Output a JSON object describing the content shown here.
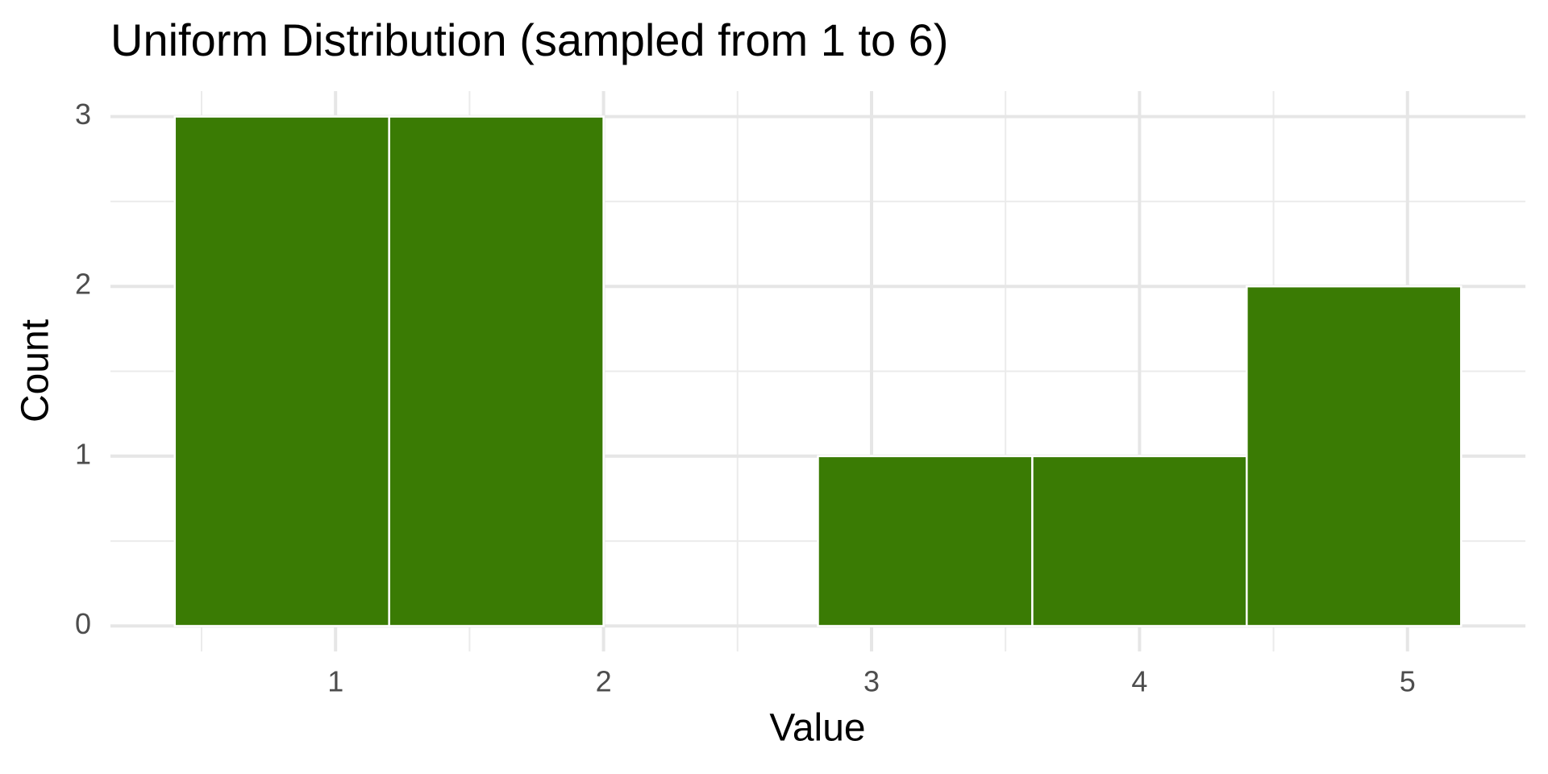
{
  "chart_data": {
    "type": "histogram",
    "title": "Uniform Distribution (sampled from 1 to 6)",
    "x_label": "Value",
    "y_label": "Count",
    "bins": [
      0.4,
      1.2,
      2.0,
      2.8,
      3.6,
      4.4,
      5.2
    ],
    "values": [
      3,
      3,
      0,
      1,
      1,
      2
    ],
    "color": "#3a7b04",
    "xlim": [
      0.16,
      5.44
    ],
    "xticks": [
      1,
      2,
      3,
      4,
      5
    ],
    "x_minor_grid": [
      0.5,
      1.5,
      2.5,
      3.5,
      4.5
    ],
    "ylim": [
      -0.15,
      3.15
    ],
    "yticks": [
      0,
      1,
      2,
      3
    ],
    "y_minor_grid": [
      0.5,
      1.5,
      2.5
    ],
    "grid": true
  }
}
